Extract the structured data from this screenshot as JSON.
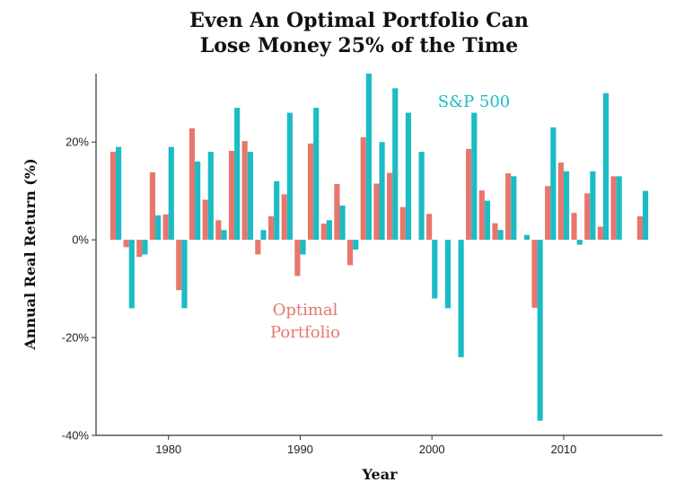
{
  "chart_data": {
    "type": "bar",
    "title": "Even An Optimal Portfolio Can Lose Money 25% of the Time",
    "title_lines": [
      "Even An Optimal Portfolio Can",
      "Lose Money 25% of the Time"
    ],
    "xlabel": "Year",
    "ylabel": "Annual Real Return (%)",
    "xlim": [
      1974.5,
      2017.5
    ],
    "ylim": [
      -40,
      34
    ],
    "x_ticks": [
      1980,
      1990,
      2000,
      2010
    ],
    "x_tick_labels": [
      "1980",
      "1990",
      "2000",
      "2010"
    ],
    "y_ticks": [
      -40,
      -20,
      0,
      20
    ],
    "y_tick_labels": [
      "-40%",
      "-20%",
      "0%",
      "20%"
    ],
    "grid": false,
    "legend": "none (series labeled directly on chart)",
    "x": [
      1976,
      1977,
      1978,
      1979,
      1980,
      1981,
      1982,
      1983,
      1984,
      1985,
      1986,
      1987,
      1988,
      1989,
      1990,
      1991,
      1992,
      1993,
      1994,
      1995,
      1996,
      1997,
      1998,
      1999,
      2000,
      2001,
      2002,
      2003,
      2004,
      2005,
      2006,
      2007,
      2008,
      2009,
      2010,
      2011,
      2012,
      2013,
      2014,
      2015,
      2016
    ],
    "series": [
      {
        "name": "Optimal Portfolio",
        "color": "#E8766D",
        "values": [
          18,
          -1.5,
          -3.5,
          13.8,
          5.2,
          -10.3,
          22.8,
          8.2,
          4,
          18.2,
          20.2,
          -3,
          4.8,
          9.3,
          -7.4,
          19.7,
          3.3,
          11.4,
          -5.2,
          21,
          11.5,
          13.7,
          6.7,
          0,
          5.3,
          0,
          0,
          18.6,
          10.1,
          3.4,
          13.6,
          0,
          -13.9,
          11,
          15.8,
          5.5,
          9.5,
          2.7,
          13,
          0,
          4.8
        ]
      },
      {
        "name": "S&P 500",
        "color": "#1BBCC5",
        "values": [
          19,
          -14,
          -3,
          5,
          19,
          -14,
          16,
          18,
          2,
          27,
          18,
          2,
          12,
          26,
          -3,
          27,
          4,
          7,
          -2,
          34,
          20,
          31,
          26,
          18,
          -12,
          -14,
          -24,
          26,
          8,
          2,
          13,
          1,
          -37,
          23,
          14,
          -1,
          14,
          30,
          13,
          0,
          10
        ]
      }
    ],
    "annotations": [
      {
        "text": "S&P 500",
        "series": "S&P 500"
      },
      {
        "text": "Optimal",
        "series": "Optimal Portfolio"
      },
      {
        "text": "Portfolio",
        "series": "Optimal Portfolio"
      }
    ]
  }
}
